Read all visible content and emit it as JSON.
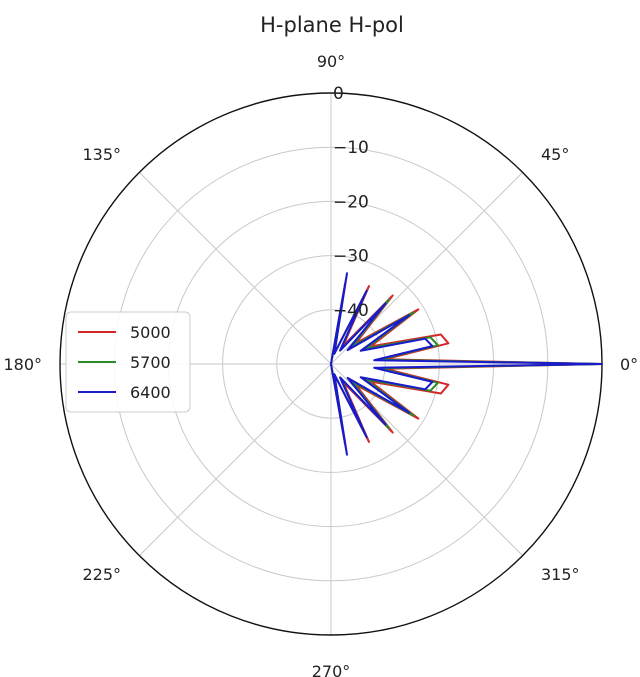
{
  "chart_data": {
    "type": "line",
    "projection": "polar",
    "title": "H-plane H-pol",
    "angle_ticks": [
      {
        "angle": 0,
        "label": "0°"
      },
      {
        "angle": 45,
        "label": "45°"
      },
      {
        "angle": 90,
        "label": "90°"
      },
      {
        "angle": 135,
        "label": "135°"
      },
      {
        "angle": 180,
        "label": "180°"
      },
      {
        "angle": 225,
        "label": "225°"
      },
      {
        "angle": 270,
        "label": "270°"
      },
      {
        "angle": 315,
        "label": "315°"
      }
    ],
    "radial_ticks": [
      {
        "value": 0,
        "label": "0"
      },
      {
        "value": -10,
        "label": "−10"
      },
      {
        "value": -20,
        "label": "−20"
      },
      {
        "value": -30,
        "label": "−30"
      },
      {
        "value": -40,
        "label": "−40"
      }
    ],
    "rlim": [
      -50,
      0
    ],
    "grid": true,
    "legend": {
      "placement": "left"
    },
    "series": [
      {
        "name": "5000",
        "color": "#d62728",
        "points": [
          [
            -90,
            -50
          ],
          [
            -80,
            -35
          ],
          [
            -72,
            -48
          ],
          [
            -64,
            -34
          ],
          [
            -56,
            -46
          ],
          [
            -48,
            -33
          ],
          [
            -40,
            -44
          ],
          [
            -32,
            -31
          ],
          [
            -24,
            -42
          ],
          [
            -15,
            -29
          ],
          [
            -10,
            -28
          ],
          [
            -5,
            -40
          ],
          [
            0,
            0
          ],
          [
            5,
            -40
          ],
          [
            10,
            -28
          ],
          [
            15,
            -29
          ],
          [
            24,
            -42
          ],
          [
            32,
            -31
          ],
          [
            40,
            -44
          ],
          [
            48,
            -33
          ],
          [
            56,
            -46
          ],
          [
            64,
            -34
          ],
          [
            72,
            -48
          ],
          [
            80,
            -35
          ],
          [
            90,
            -50
          ]
        ]
      },
      {
        "name": "5700",
        "color": "#2a8a2a",
        "points": [
          [
            -90,
            -50
          ],
          [
            -80,
            -36
          ],
          [
            -72,
            -48
          ],
          [
            -64,
            -35
          ],
          [
            -56,
            -47
          ],
          [
            -48,
            -34
          ],
          [
            -40,
            -45
          ],
          [
            -32,
            -32
          ],
          [
            -24,
            -43
          ],
          [
            -15,
            -31
          ],
          [
            -10,
            -30
          ],
          [
            -5,
            -41
          ],
          [
            0,
            0
          ],
          [
            5,
            -41
          ],
          [
            10,
            -30
          ],
          [
            15,
            -31
          ],
          [
            24,
            -43
          ],
          [
            32,
            -32
          ],
          [
            40,
            -45
          ],
          [
            48,
            -34
          ],
          [
            56,
            -47
          ],
          [
            64,
            -35
          ],
          [
            72,
            -48
          ],
          [
            80,
            -36
          ],
          [
            90,
            -50
          ]
        ]
      },
      {
        "name": "6400",
        "color": "#1a1acc",
        "points": [
          [
            -90,
            -50
          ],
          [
            -80,
            -33
          ],
          [
            -72,
            -48
          ],
          [
            -64,
            -35
          ],
          [
            -56,
            -47
          ],
          [
            -48,
            -35
          ],
          [
            -40,
            -46
          ],
          [
            -32,
            -33
          ],
          [
            -24,
            -44
          ],
          [
            -15,
            -32
          ],
          [
            -10,
            -31
          ],
          [
            -5,
            -42
          ],
          [
            0,
            0
          ],
          [
            5,
            -42
          ],
          [
            10,
            -31
          ],
          [
            15,
            -32
          ],
          [
            24,
            -44
          ],
          [
            32,
            -33
          ],
          [
            40,
            -46
          ],
          [
            48,
            -35
          ],
          [
            56,
            -47
          ],
          [
            64,
            -35
          ],
          [
            72,
            -48
          ],
          [
            80,
            -33
          ],
          [
            90,
            -50
          ]
        ]
      }
    ]
  }
}
